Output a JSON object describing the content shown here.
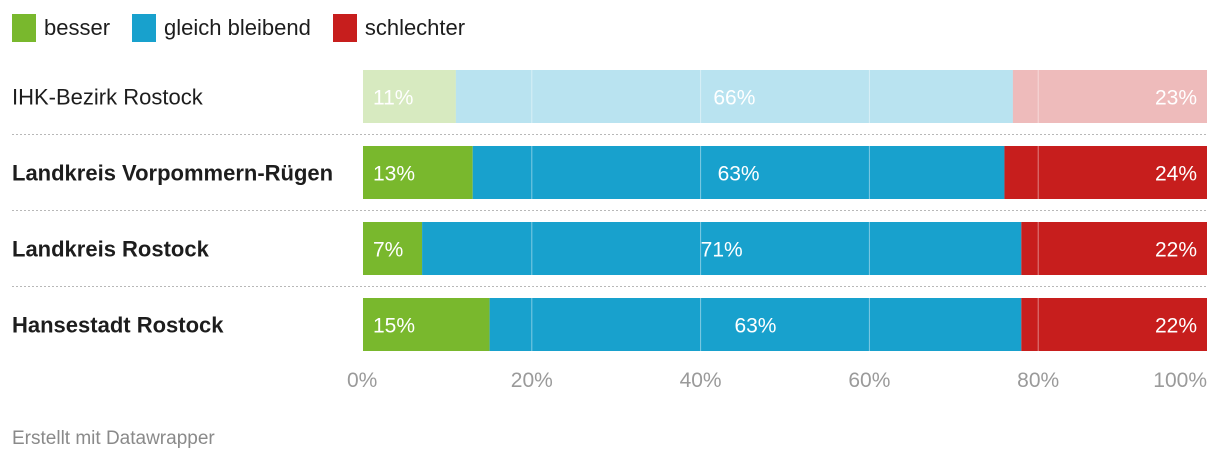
{
  "legend": [
    {
      "label": "besser",
      "color": "#79b82d"
    },
    {
      "label": "gleich bleibend",
      "color": "#18a1cd"
    },
    {
      "label": "schlechter",
      "color": "#c71e1d"
    }
  ],
  "footer": "Erstellt mit Datawrapper",
  "chart_data": {
    "type": "bar",
    "orientation": "horizontal",
    "stacked": true,
    "categories": [
      "IHK-Bezirk Rostock",
      "Landkreis Vorpommern-Rügen",
      "Landkreis Rostock",
      "Hansestadt Rostock"
    ],
    "category_emphasis": [
      false,
      true,
      true,
      true
    ],
    "series": [
      {
        "name": "besser",
        "color": "#79b82d",
        "values": [
          11,
          13,
          7,
          15
        ]
      },
      {
        "name": "gleich bleibend",
        "color": "#18a1cd",
        "values": [
          66,
          63,
          71,
          63
        ]
      },
      {
        "name": "schlechter",
        "color": "#c71e1d",
        "values": [
          23,
          24,
          22,
          22
        ]
      }
    ],
    "value_labels": [
      [
        "11%",
        "66%",
        "23%"
      ],
      [
        "13%",
        "63%",
        "24%"
      ],
      [
        "7%",
        "71%",
        "22%"
      ],
      [
        "15%",
        "63%",
        "22%"
      ]
    ],
    "muted_rows": [
      true,
      false,
      false,
      false
    ],
    "xlim": [
      0,
      100
    ],
    "x_ticks": [
      0,
      20,
      40,
      60,
      80,
      100
    ],
    "x_tick_labels": [
      "0%",
      "20%",
      "40%",
      "60%",
      "80%",
      "100%"
    ],
    "grid": true,
    "legend_position": "top-left"
  }
}
